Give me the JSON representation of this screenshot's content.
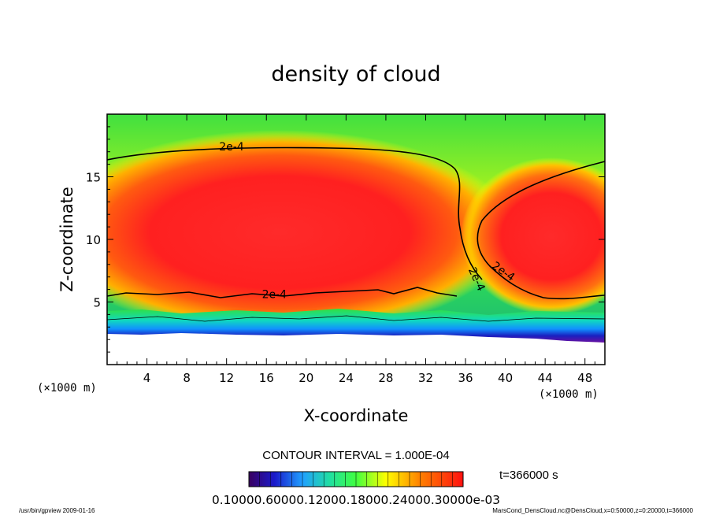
{
  "chart_data": {
    "type": "heatmap",
    "title": "density of cloud",
    "xlabel": "X-coordinate",
    "ylabel": "Z-coordinate",
    "x_unit": "(×1000 m)",
    "y_unit": "(×1000 m)",
    "xlim": [
      0,
      50
    ],
    "ylim": [
      0,
      20
    ],
    "x_ticks": [
      4,
      8,
      12,
      16,
      20,
      24,
      28,
      32,
      36,
      40,
      44,
      48
    ],
    "y_ticks": [
      5,
      10,
      15
    ],
    "grid": false,
    "contour_interval_text": "CONTOUR INTERVAL = 1.000E-04",
    "contour_labels": [
      {
        "text": "2e-4",
        "x": 12.5,
        "z": 17.1
      },
      {
        "text": "2e-4",
        "x": 16.8,
        "z": 5.3
      },
      {
        "text": "2e-4",
        "x": 36.8,
        "z": 6.7
      },
      {
        "text": "2e-4",
        "x": 39.6,
        "z": 7.2
      }
    ],
    "colorbar_label": "0.10000.60000.12000.18000.24000.30000e-03",
    "colorbar_min": 0.0001,
    "colorbar_max": 0.0003,
    "time_label": "t=366000 s"
  },
  "footer": {
    "left": "/usr/bin/gpview   2009-01-16",
    "right": "MarsCond_DensCloud.nc@DensCloud,x=0:50000,z=0:20000,t=366000"
  },
  "colors": {
    "high": "#ff2020",
    "mid": "#ffff00",
    "low": "#20d020",
    "min": "#1010a0",
    "none": "#ffffff"
  }
}
